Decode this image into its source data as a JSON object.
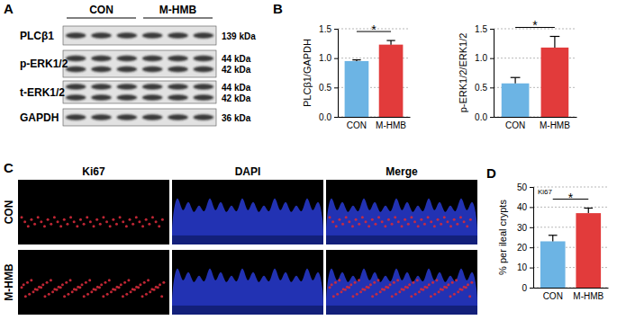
{
  "panel_labels": [
    "A",
    "B",
    "C",
    "D"
  ],
  "blot": {
    "groups": [
      "CON",
      "M-HMB"
    ],
    "rows": [
      {
        "label": "PLCβ1",
        "sizes": [
          "139 kDa"
        ]
      },
      {
        "label": "p-ERK1/2",
        "sizes": [
          "44 kDa",
          "42 kDa"
        ]
      },
      {
        "label": "t-ERK1/2",
        "sizes": [
          "44 kDa",
          "42 kDa"
        ]
      },
      {
        "label": "GAPDH",
        "sizes": [
          "36 kDa"
        ]
      }
    ]
  },
  "microscopy": {
    "columns": [
      "Ki67",
      "DAPI",
      "Merge"
    ],
    "rows": [
      "CON",
      "M-HMB"
    ]
  },
  "chart_data": [
    {
      "type": "bar",
      "y_label": "PLCβ1/GAPDH",
      "categories": [
        "CON",
        "M-HMB"
      ],
      "values": [
        0.95,
        1.23
      ],
      "errors": [
        0.02,
        0.07
      ],
      "colors": [
        "#6cb4e4",
        "#e23b3b"
      ],
      "ylim": [
        0,
        1.5
      ],
      "yticks": [
        {
          "value": 0,
          "label": "0.0"
        },
        0.5,
        {
          "value": 1,
          "label": "1.0"
        },
        1.5
      ],
      "grid": true,
      "annotation": "*"
    },
    {
      "type": "bar",
      "y_label": "p-ERK1/2/ERK1/2",
      "categories": [
        "CON",
        "M-HMB"
      ],
      "values": [
        0.57,
        1.18
      ],
      "errors": [
        0.1,
        0.19
      ],
      "colors": [
        "#6cb4e4",
        "#e23b3b"
      ],
      "ylim": [
        0,
        1.5
      ],
      "yticks": [
        {
          "value": 0,
          "label": "0.0"
        },
        0.5,
        {
          "value": 1,
          "label": "1.0"
        },
        1.5
      ],
      "grid": true,
      "annotation": "*"
    },
    {
      "type": "bar",
      "title": "Ki67",
      "y_label": "% per ileal crypts",
      "categories": [
        "CON",
        "M-HMB"
      ],
      "values": [
        23,
        37
      ],
      "errors": [
        3,
        2.5
      ],
      "colors": [
        "#6cb4e4",
        "#e23b3b"
      ],
      "ylim": [
        0,
        50
      ],
      "yticks": [
        0,
        10,
        20,
        30,
        40,
        50
      ],
      "grid": true,
      "annotation": "*"
    }
  ]
}
